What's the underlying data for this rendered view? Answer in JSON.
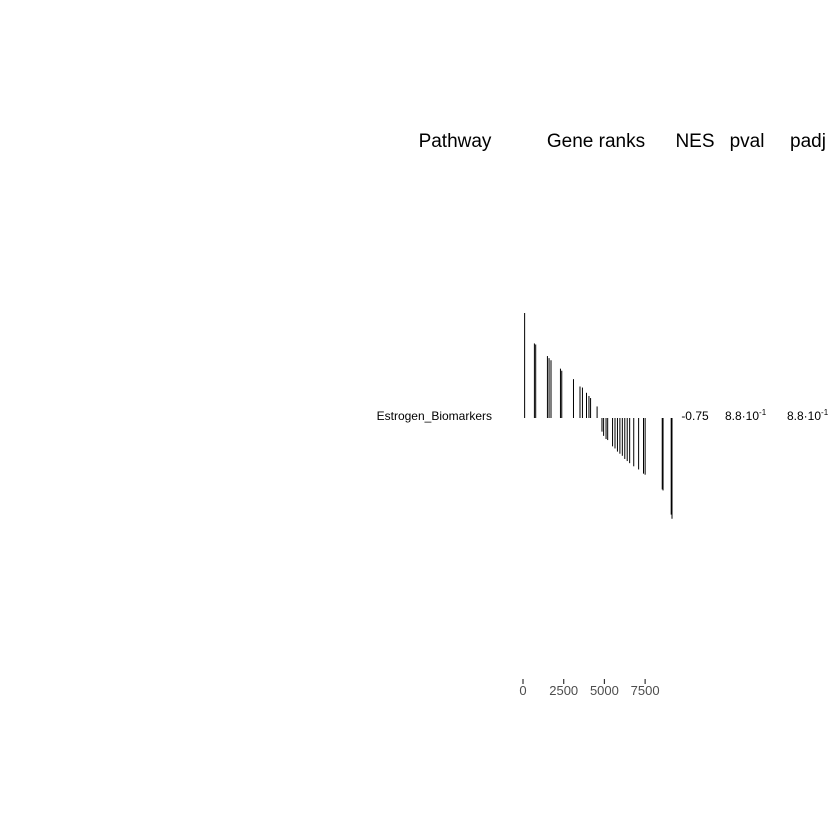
{
  "chart_data": {
    "type": "gsea-table",
    "headers": {
      "pathway": "Pathway",
      "gene_ranks": "Gene ranks",
      "nes": "NES",
      "pval": "pval",
      "padj": "padj"
    },
    "rows": [
      {
        "pathway": "Estrogen_Biomarkers",
        "nes": "-0.75",
        "pval": {
          "mantissa": "8.8·10",
          "exponent": "-1"
        },
        "padj": {
          "mantissa": "8.8·10",
          "exponent": "-1"
        },
        "ranks": [
          {
            "rank": 100,
            "stat": 1.0
          },
          {
            "rank": 700,
            "stat": 0.71
          },
          {
            "rank": 780,
            "stat": 0.7
          },
          {
            "rank": 1500,
            "stat": 0.59
          },
          {
            "rank": 1600,
            "stat": 0.57
          },
          {
            "rank": 1720,
            "stat": 0.55
          },
          {
            "rank": 2300,
            "stat": 0.47
          },
          {
            "rank": 2380,
            "stat": 0.45
          },
          {
            "rank": 3100,
            "stat": 0.37
          },
          {
            "rank": 3500,
            "stat": 0.3
          },
          {
            "rank": 3650,
            "stat": 0.29
          },
          {
            "rank": 3900,
            "stat": 0.24
          },
          {
            "rank": 4050,
            "stat": 0.21
          },
          {
            "rank": 4150,
            "stat": 0.19
          },
          {
            "rank": 4550,
            "stat": 0.11
          },
          {
            "rank": 4850,
            "stat": -0.13
          },
          {
            "rank": 4950,
            "stat": -0.17
          },
          {
            "rank": 5100,
            "stat": -0.2
          },
          {
            "rank": 5200,
            "stat": -0.21
          },
          {
            "rank": 5500,
            "stat": -0.27
          },
          {
            "rank": 5650,
            "stat": -0.29
          },
          {
            "rank": 5800,
            "stat": -0.32
          },
          {
            "rank": 5950,
            "stat": -0.34
          },
          {
            "rank": 6100,
            "stat": -0.36
          },
          {
            "rank": 6250,
            "stat": -0.39
          },
          {
            "rank": 6400,
            "stat": -0.41
          },
          {
            "rank": 6550,
            "stat": -0.43
          },
          {
            "rank": 6800,
            "stat": -0.46
          },
          {
            "rank": 7100,
            "stat": -0.49
          },
          {
            "rank": 7400,
            "stat": -0.53
          },
          {
            "rank": 7500,
            "stat": -0.54
          },
          {
            "rank": 8550,
            "stat": -0.68
          },
          {
            "rank": 8600,
            "stat": -0.69
          },
          {
            "rank": 9100,
            "stat": -0.92
          },
          {
            "rank": 9150,
            "stat": -0.96
          }
        ]
      }
    ],
    "x_axis": {
      "ticks": [
        0,
        2500,
        5000,
        7500
      ],
      "tick_labels": [
        "0",
        "2500",
        "5000",
        "7500"
      ],
      "xlim": [
        0,
        9150
      ]
    },
    "colors": {
      "bar": "#000000",
      "axis": "#333333",
      "tick_text": "#4d4d4d"
    }
  }
}
